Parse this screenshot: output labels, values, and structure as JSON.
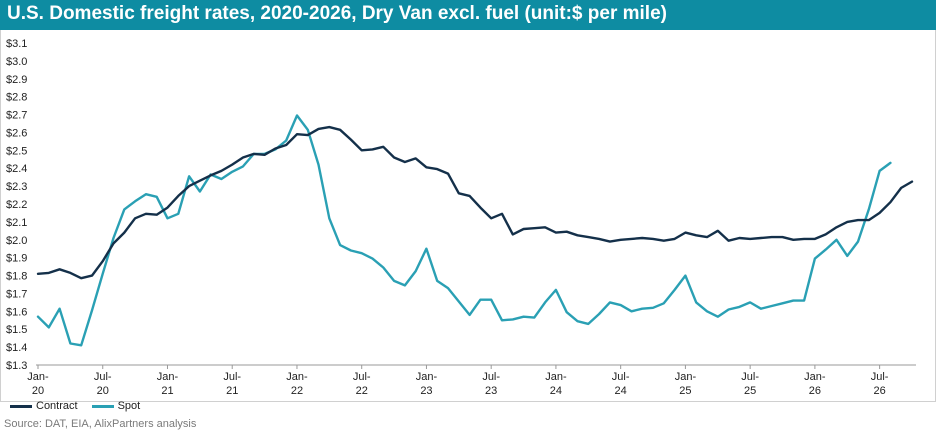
{
  "title": "U.S. Domestic freight rates, 2020-2026, Dry Van excl. fuel (unit:$ per mile)",
  "source": "Source: DAT, EIA, AlixPartners analysis",
  "colors": {
    "title_bg": "#0e8ca2",
    "contract": "#14304a",
    "spot": "#2aa0b4"
  },
  "chart_data": {
    "type": "line",
    "ylim": [
      1.3,
      3.1
    ],
    "yticks": [
      "$1.3",
      "$1.4",
      "$1.5",
      "$1.6",
      "$1.7",
      "$1.8",
      "$1.9",
      "$2.0",
      "$2.1",
      "$2.2",
      "$2.3",
      "$2.4",
      "$2.5",
      "$2.6",
      "$2.7",
      "$2.8",
      "$2.9",
      "$3.0",
      "$3.1"
    ],
    "xticks": [
      {
        "month": "Jan-",
        "year": "20",
        "index": 0
      },
      {
        "month": "Jul-",
        "year": "20",
        "index": 6
      },
      {
        "month": "Jan-",
        "year": "21",
        "index": 12
      },
      {
        "month": "Jul-",
        "year": "21",
        "index": 18
      },
      {
        "month": "Jan-",
        "year": "22",
        "index": 24
      },
      {
        "month": "Jul-",
        "year": "22",
        "index": 30
      },
      {
        "month": "Jan-",
        "year": "23",
        "index": 36
      },
      {
        "month": "Jul-",
        "year": "23",
        "index": 42
      },
      {
        "month": "Jan-",
        "year": "24",
        "index": 48
      },
      {
        "month": "Jul-",
        "year": "24",
        "index": 54
      },
      {
        "month": "Jan-",
        "year": "25",
        "index": 60
      },
      {
        "month": "Jul-",
        "year": "25",
        "index": 66
      },
      {
        "month": "Jan-",
        "year": "26",
        "index": 72
      },
      {
        "month": "Jul-",
        "year": "26",
        "index": 78
      }
    ],
    "x_start": "Jan-20",
    "x_end": "Jul-26",
    "grid": false,
    "legend_position": "bottom-left",
    "series": [
      {
        "name": "Contract",
        "values": [
          1.81,
          1.815,
          1.835,
          1.815,
          1.785,
          1.8,
          1.88,
          1.98,
          2.04,
          2.12,
          2.145,
          2.14,
          2.18,
          2.245,
          2.3,
          2.33,
          2.36,
          2.385,
          2.42,
          2.46,
          2.48,
          2.475,
          2.51,
          2.53,
          2.59,
          2.585,
          2.62,
          2.63,
          2.615,
          2.56,
          2.5,
          2.505,
          2.52,
          2.46,
          2.435,
          2.455,
          2.405,
          2.395,
          2.37,
          2.26,
          2.245,
          2.18,
          2.12,
          2.145,
          2.03,
          2.06,
          2.065,
          2.07,
          2.04,
          2.045,
          2.025,
          2.015,
          2.005,
          1.99,
          2.0,
          2.005,
          2.01,
          2.005,
          1.995,
          2.005,
          2.04,
          2.025,
          2.015,
          2.05,
          1.995,
          2.01,
          2.005,
          2.01,
          2.015,
          2.015,
          2.0,
          2.005,
          2.005,
          2.03,
          2.07,
          2.1,
          2.11,
          2.11,
          2.15,
          2.21,
          2.29,
          2.325
        ]
      },
      {
        "name": "Spot",
        "values": [
          1.57,
          1.51,
          1.615,
          1.42,
          1.41,
          1.605,
          1.81,
          2.01,
          2.17,
          2.215,
          2.255,
          2.24,
          2.12,
          2.145,
          2.355,
          2.27,
          2.365,
          2.34,
          2.38,
          2.41,
          2.48,
          2.48,
          2.505,
          2.555,
          2.695,
          2.615,
          2.42,
          2.12,
          1.97,
          1.94,
          1.925,
          1.895,
          1.845,
          1.77,
          1.745,
          1.825,
          1.95,
          1.77,
          1.73,
          1.655,
          1.58,
          1.665,
          1.665,
          1.55,
          1.555,
          1.57,
          1.565,
          1.65,
          1.72,
          1.595,
          1.545,
          1.53,
          1.585,
          1.65,
          1.635,
          1.6,
          1.615,
          1.62,
          1.645,
          1.72,
          1.8,
          1.65,
          1.6,
          1.57,
          1.61,
          1.625,
          1.65,
          1.615,
          1.63,
          1.645,
          1.66,
          1.66,
          1.895,
          1.945,
          2.0,
          1.91,
          1.99,
          2.17,
          2.385,
          2.43
        ]
      }
    ]
  }
}
